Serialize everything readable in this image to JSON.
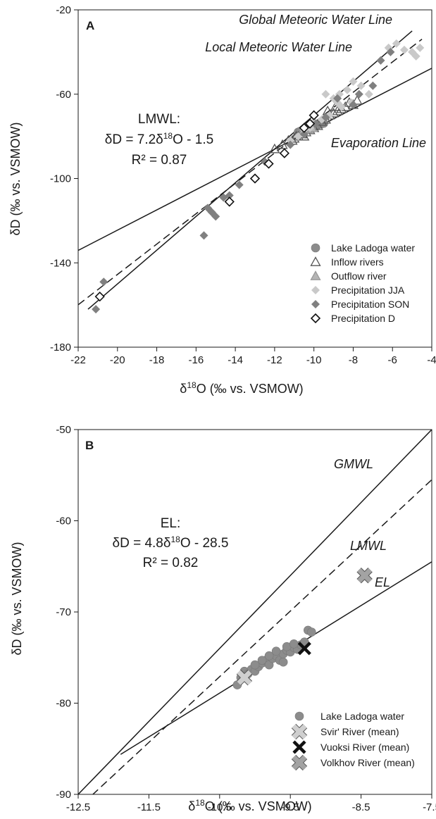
{
  "chart_data": [
    {
      "type": "scatter",
      "panel": "A",
      "xlabel": "δ18O (‰ vs. VSMOW)",
      "ylabel": "δD (‰ vs. VSMOW)",
      "xlim": [
        -22,
        -4
      ],
      "ylim": [
        -180,
        -20
      ],
      "xticks": [
        -22,
        -20,
        -18,
        -16,
        -14,
        -12,
        -10,
        -8,
        -6,
        -4
      ],
      "yticks": [
        -180,
        -140,
        -100,
        -60,
        -20
      ],
      "grid": false,
      "legend_position": "bottom-right",
      "lines": [
        {
          "name": "Global Meteoric Water Line",
          "slope": 8,
          "intercept": 10,
          "style": "solid",
          "x_range": [
            -21.5,
            -5
          ]
        },
        {
          "name": "Local Meteoric Water Line",
          "slope": 7.2,
          "intercept": -1.5,
          "style": "dashed",
          "x_range": [
            -22,
            -4.5
          ]
        },
        {
          "name": "Evaporation Line",
          "slope": 4.8,
          "intercept": -28.5,
          "style": "solid",
          "x_range": [
            -22,
            -4
          ]
        }
      ],
      "annotation": {
        "line1": "LMWL:",
        "line2_prefix": "δD = 7.2δ",
        "line2_sup": "18",
        "line2_suffix": "O - 1.5",
        "line3": "R² = 0.87"
      },
      "series": [
        {
          "name": "Lake Ladoga water",
          "marker": "circle",
          "color": "#8c8c8c",
          "points": [
            [
              -10.8,
              -78
            ],
            [
              -10.6,
              -77.5
            ],
            [
              -10.5,
              -77
            ],
            [
              -10.4,
              -76.8
            ],
            [
              -10.3,
              -76.3
            ],
            [
              -10.2,
              -76
            ],
            [
              -10.1,
              -75.6
            ],
            [
              -10.0,
              -75.3
            ],
            [
              -9.9,
              -75
            ],
            [
              -9.8,
              -74.6
            ],
            [
              -9.7,
              -74.2
            ],
            [
              -9.6,
              -74
            ],
            [
              -9.5,
              -73.8
            ],
            [
              -10.7,
              -77.6
            ],
            [
              -10.35,
              -76.7
            ],
            [
              -9.95,
              -75.4
            ]
          ]
        },
        {
          "name": "Inflow rivers",
          "marker": "triangle-open",
          "color": "#555555",
          "points": [
            [
              -12,
              -86
            ],
            [
              -11.6,
              -84
            ],
            [
              -11.3,
              -82
            ],
            [
              -11.0,
              -81
            ],
            [
              -10.8,
              -80
            ],
            [
              -10.6,
              -79
            ],
            [
              -10.4,
              -78
            ],
            [
              -10.2,
              -77
            ],
            [
              -10.0,
              -76
            ],
            [
              -9.8,
              -75
            ],
            [
              -9.6,
              -73
            ],
            [
              -9.4,
              -72
            ],
            [
              -9.2,
              -70
            ],
            [
              -9.0,
              -69
            ],
            [
              -8.8,
              -68
            ],
            [
              -8.6,
              -67
            ],
            [
              -8.4,
              -66
            ],
            [
              -8.2,
              -64
            ],
            [
              -8.0,
              -65
            ],
            [
              -7.8,
              -63
            ],
            [
              -9.3,
              -68
            ],
            [
              -8.9,
              -66
            ],
            [
              -10.5,
              -80
            ],
            [
              -10.9,
              -80
            ],
            [
              -11.1,
              -82
            ]
          ]
        },
        {
          "name": "Outflow river",
          "marker": "triangle-filled",
          "color": "#b5b5b5",
          "points": [
            [
              -10.5,
              -77
            ],
            [
              -10.3,
              -76.5
            ],
            [
              -10.1,
              -76
            ]
          ]
        },
        {
          "name": "Precipitation JJA",
          "marker": "diamond-filled",
          "color": "#c9c9c9",
          "points": [
            [
              -11.2,
              -82
            ],
            [
              -10.8,
              -80
            ],
            [
              -10.5,
              -77
            ],
            [
              -10.2,
              -76
            ],
            [
              -10.0,
              -73
            ],
            [
              -9.6,
              -72
            ],
            [
              -9.2,
              -70
            ],
            [
              -9.0,
              -62
            ],
            [
              -8.8,
              -64
            ],
            [
              -8.6,
              -66
            ],
            [
              -8.3,
              -58
            ],
            [
              -8.1,
              -64
            ],
            [
              -7.6,
              -56
            ],
            [
              -7.2,
              -60
            ],
            [
              -6.6,
              -44
            ],
            [
              -6.2,
              -38
            ],
            [
              -5.8,
              -36
            ],
            [
              -5.4,
              -39
            ],
            [
              -5.0,
              -40
            ],
            [
              -4.8,
              -42
            ],
            [
              -4.6,
              -38
            ],
            [
              -9.4,
              -60
            ],
            [
              -8.7,
              -60
            ],
            [
              -8.0,
              -54
            ]
          ]
        },
        {
          "name": "Precipitation SON",
          "marker": "diamond-filled",
          "color": "#808080",
          "points": [
            [
              -21.1,
              -162
            ],
            [
              -20.7,
              -149
            ],
            [
              -15.6,
              -127
            ],
            [
              -15.4,
              -114
            ],
            [
              -15.2,
              -116
            ],
            [
              -15.0,
              -118
            ],
            [
              -14.6,
              -109
            ],
            [
              -14.3,
              -108
            ],
            [
              -13.8,
              -103
            ],
            [
              -12.5,
              -92
            ],
            [
              -11.2,
              -84
            ],
            [
              -10.5,
              -79
            ],
            [
              -9.9,
              -74
            ],
            [
              -9.4,
              -71
            ],
            [
              -8.8,
              -62
            ],
            [
              -8.0,
              -65
            ],
            [
              -7.7,
              -60
            ],
            [
              -7.0,
              -56
            ],
            [
              -6.6,
              -44
            ],
            [
              -6.1,
              -40
            ]
          ]
        },
        {
          "name": "Precipitation D",
          "marker": "diamond-open",
          "color": "#111111",
          "points": [
            [
              -20.9,
              -156
            ],
            [
              -14.3,
              -111
            ],
            [
              -13.0,
              -100
            ],
            [
              -12.3,
              -93
            ],
            [
              -11.5,
              -88
            ],
            [
              -10.2,
              -74
            ],
            [
              -10.0,
              -70
            ],
            [
              -10.5,
              -76
            ]
          ]
        }
      ]
    },
    {
      "type": "scatter",
      "panel": "B",
      "xlabel": "δ18O (‰ vs. VSMOW)",
      "ylabel": "δD (‰ vs. VSMOW)",
      "xlim": [
        -12.5,
        -7.5
      ],
      "ylim": [
        -90,
        -50
      ],
      "xticks": [
        -12.5,
        -11.5,
        -10.5,
        -9.5,
        -8.5,
        -7.5
      ],
      "yticks": [
        -90,
        -80,
        -70,
        -60,
        -50
      ],
      "grid": false,
      "legend_position": "bottom-right",
      "lines": [
        {
          "name": "GMWL",
          "slope": 8,
          "intercept": 10,
          "style": "solid",
          "x_range": [
            -12.5,
            -7.5
          ]
        },
        {
          "name": "LMWL",
          "slope": 7.2,
          "intercept": -1.5,
          "style": "dashed",
          "x_range": [
            -12.3,
            -7.5
          ]
        },
        {
          "name": "EL",
          "slope": 4.8,
          "intercept": -28.5,
          "style": "solid",
          "x_range": [
            -11.9,
            -7.5
          ]
        }
      ],
      "annotation": {
        "line1": "EL:",
        "line2_prefix": "δD = 4.8δ",
        "line2_sup": "18",
        "line2_suffix": "O - 28.5",
        "line3": "R² = 0.82"
      },
      "series": [
        {
          "name": "Lake Ladoga water",
          "marker": "circle",
          "color": "#8c8c8c",
          "points": [
            [
              -10.25,
              -78
            ],
            [
              -10.2,
              -77.2
            ],
            [
              -10.15,
              -76.5
            ],
            [
              -10.1,
              -76.8
            ],
            [
              -10.05,
              -76.3
            ],
            [
              -10.0,
              -76.5
            ],
            [
              -9.95,
              -76.0
            ],
            [
              -9.9,
              -75.6
            ],
            [
              -9.85,
              -75.3
            ],
            [
              -9.8,
              -75.8
            ],
            [
              -9.75,
              -75.1
            ],
            [
              -9.7,
              -74.8
            ],
            [
              -9.65,
              -75.3
            ],
            [
              -9.6,
              -74.6
            ],
            [
              -9.55,
              -74.2
            ],
            [
              -9.5,
              -74.4
            ],
            [
              -9.45,
              -73.9
            ],
            [
              -9.4,
              -74.1
            ],
            [
              -9.35,
              -73.6
            ],
            [
              -9.3,
              -73.3
            ],
            [
              -9.25,
              -72.0
            ],
            [
              -9.2,
              -72.2
            ],
            [
              -9.55,
              -73.8
            ],
            [
              -9.8,
              -74.8
            ],
            [
              -9.9,
              -75.3
            ],
            [
              -9.6,
              -75.5
            ],
            [
              -10.0,
              -75.8
            ],
            [
              -9.7,
              -74.3
            ],
            [
              -9.45,
              -73.5
            ]
          ]
        },
        {
          "name": "Svir' River (mean)",
          "marker": "x-light",
          "color": "#cfcfcf",
          "points": [
            [
              -10.15,
              -77.2
            ]
          ]
        },
        {
          "name": "Vuoksi River (mean)",
          "marker": "x-dark",
          "color": "#111111",
          "points": [
            [
              -9.3,
              -74.0
            ]
          ]
        },
        {
          "name": "Volkhov River (mean)",
          "marker": "x-mid",
          "color": "#a3a3a3",
          "points": [
            [
              -8.45,
              -66.0
            ]
          ]
        }
      ]
    }
  ]
}
